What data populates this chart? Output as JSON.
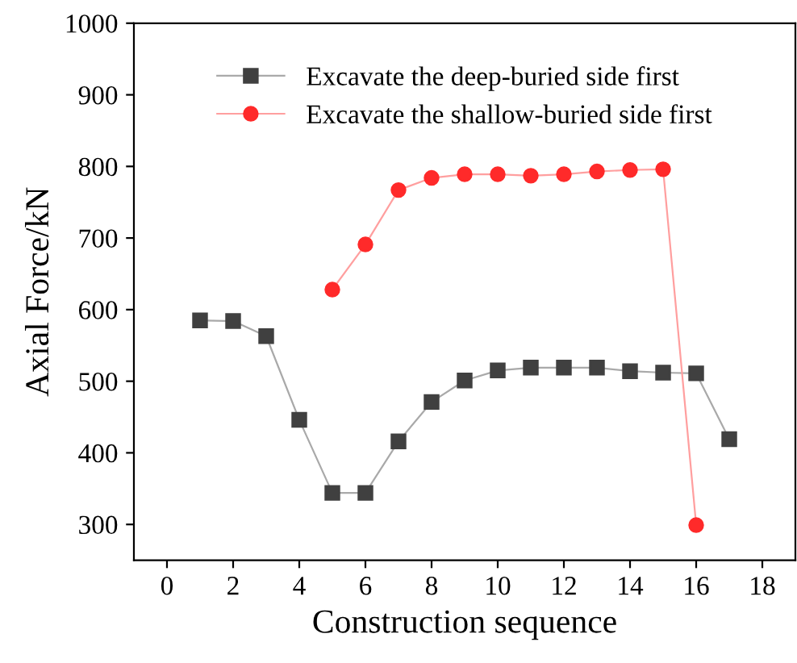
{
  "chart_data": {
    "type": "line",
    "xlabel": "Construction sequence",
    "ylabel": "Axial Force/kN",
    "xlim": [
      -1,
      19
    ],
    "xticks": [
      0,
      2,
      4,
      6,
      8,
      10,
      12,
      14,
      16,
      18
    ],
    "ylim": [
      250,
      1000
    ],
    "yticks": [
      300,
      400,
      500,
      600,
      700,
      800,
      900,
      1000
    ],
    "grid": false,
    "legend": "top",
    "line_style": "solid",
    "series": [
      {
        "name": "Excavate the deep-buried side first",
        "color": "#404040",
        "marker": "square",
        "x": [
          1,
          2,
          3,
          4,
          5,
          6,
          7,
          8,
          9,
          10,
          11,
          12,
          13,
          14,
          15,
          16,
          17
        ],
        "values": [
          585,
          584,
          563,
          446,
          344,
          344,
          416,
          471,
          501,
          515,
          519,
          519,
          519,
          514,
          512,
          511,
          419
        ]
      },
      {
        "name": "Excavate the shallow-buried side first",
        "color": "#ff2a2a",
        "marker": "circle",
        "x": [
          5,
          6,
          7,
          8,
          9,
          10,
          11,
          12,
          13,
          14,
          15,
          16
        ],
        "values": [
          628,
          691,
          767,
          784,
          789,
          789,
          787,
          789,
          793,
          795,
          796,
          299
        ]
      }
    ]
  }
}
